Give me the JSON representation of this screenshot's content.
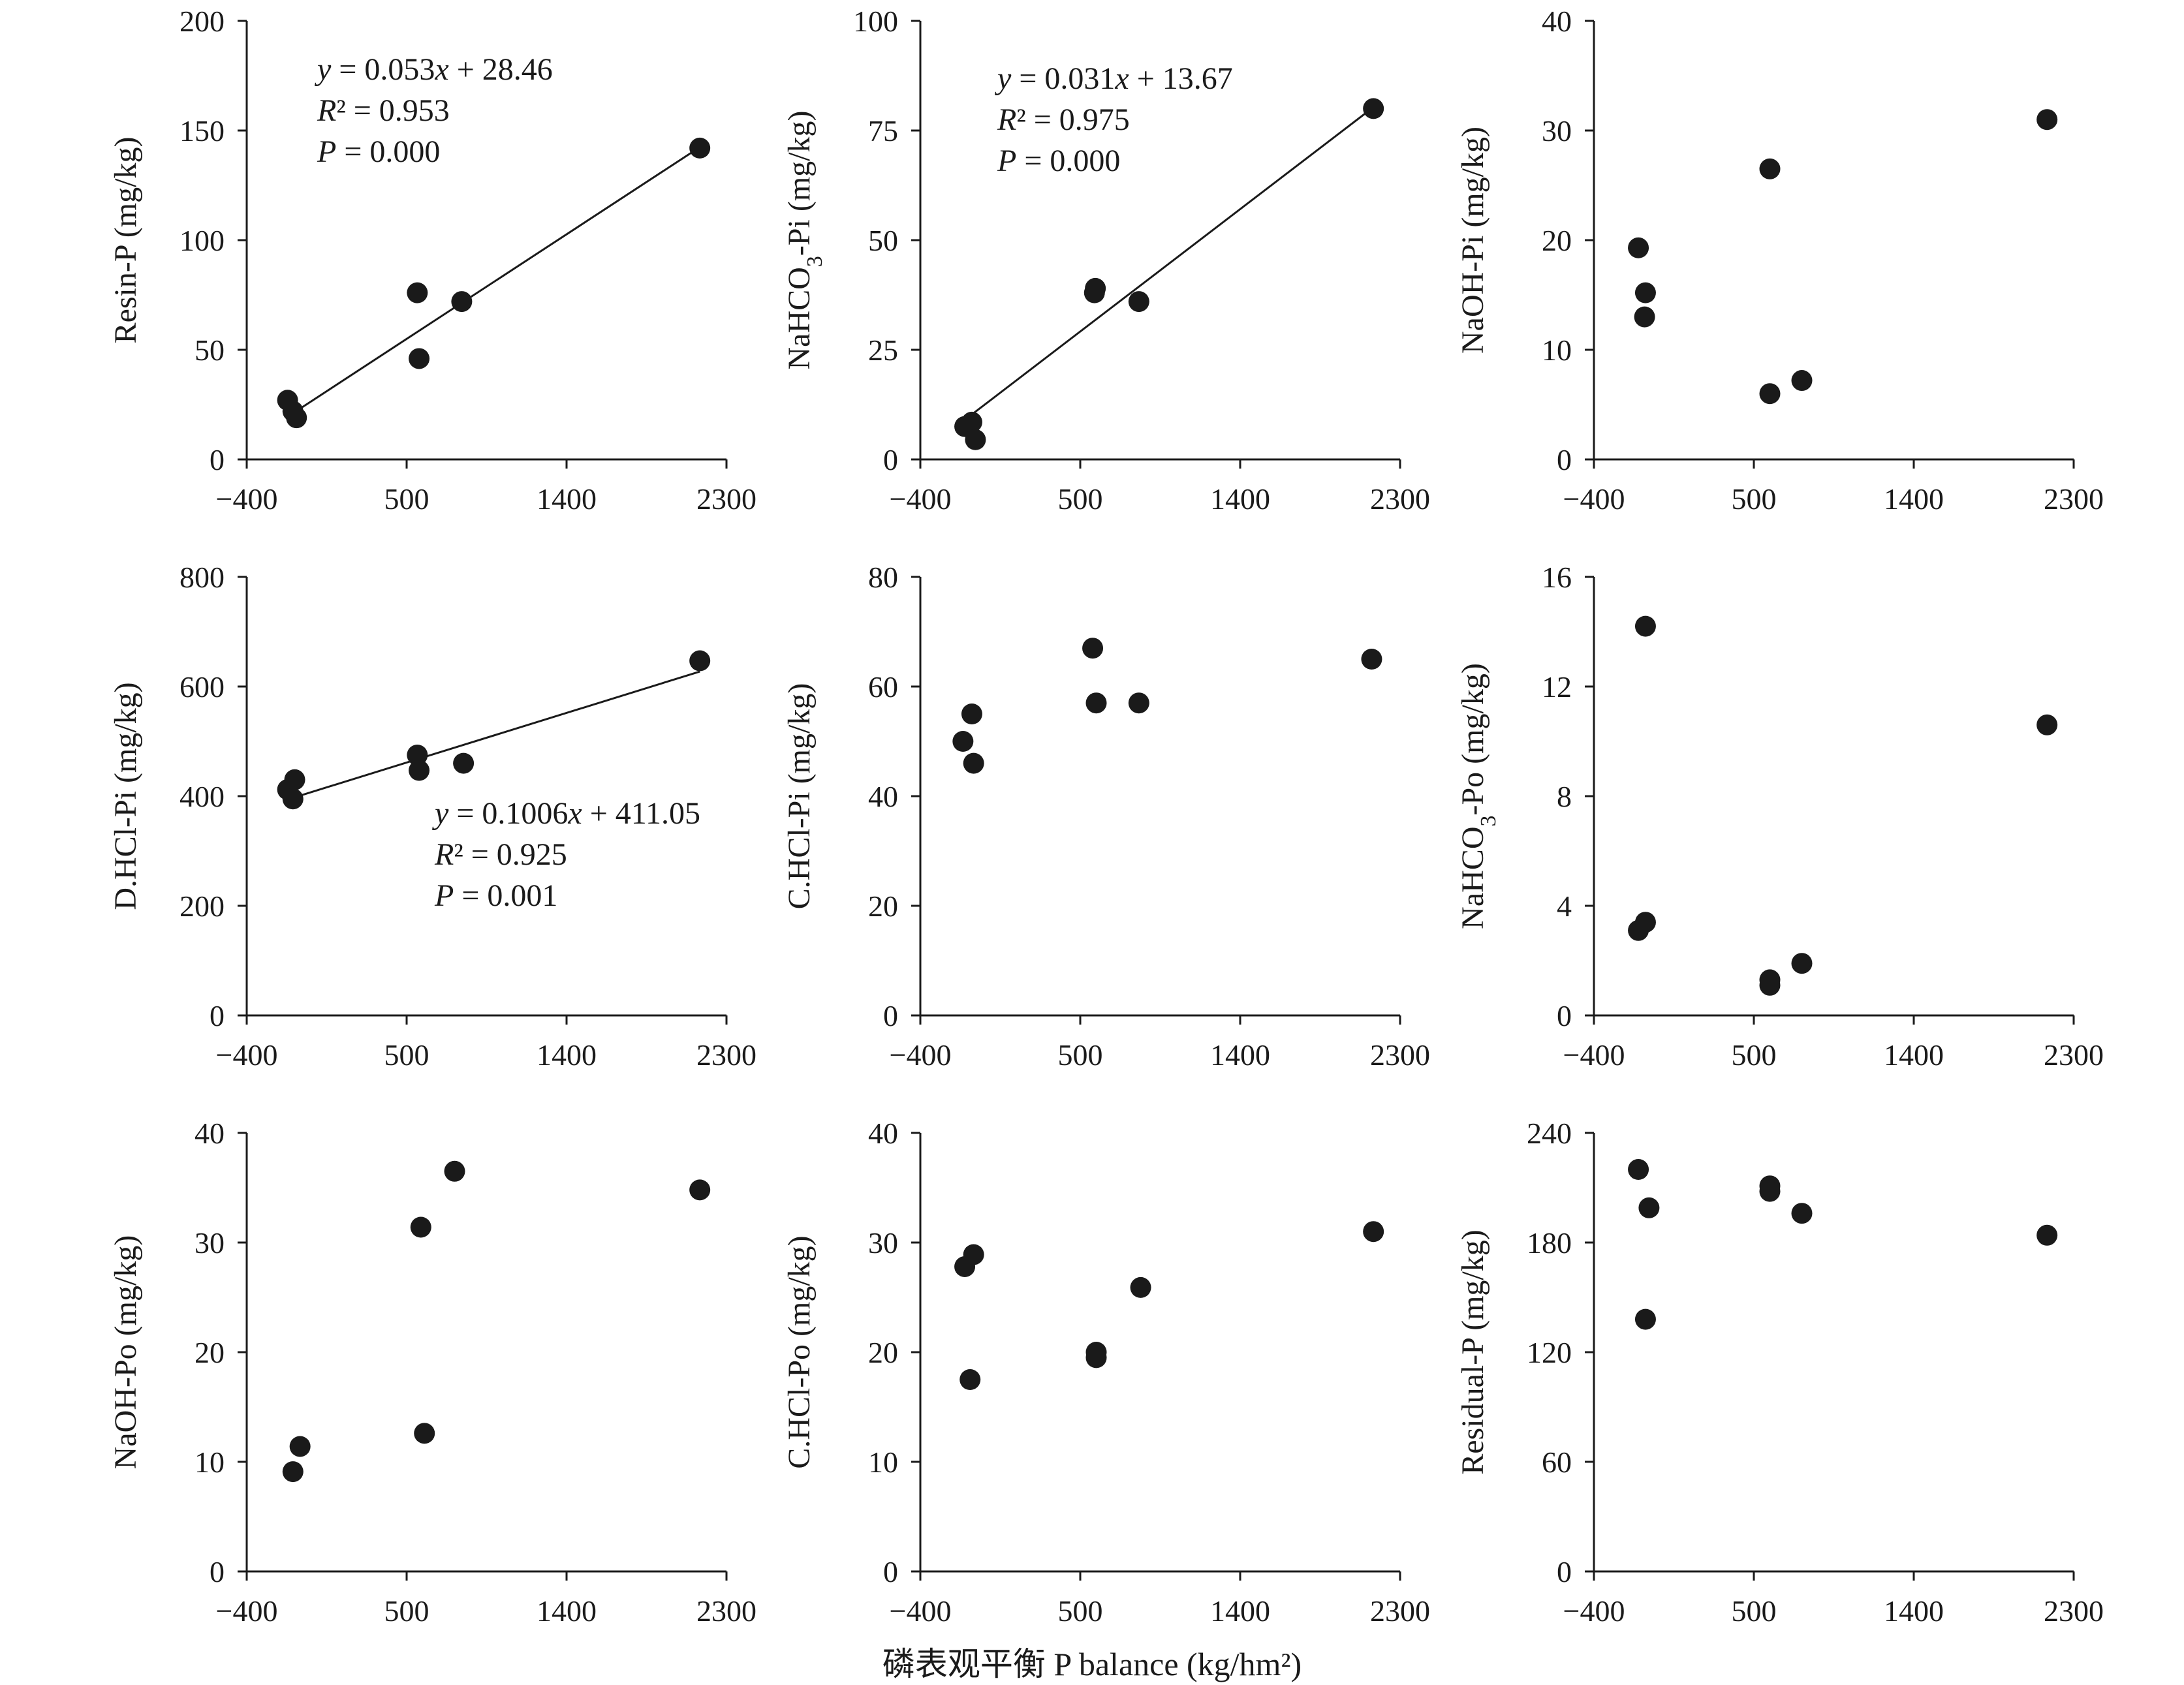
{
  "figure": {
    "x_axis_caption": "磷表观平衡 P balance (kg/hm²)"
  },
  "chart_data": [
    {
      "type": "scatter",
      "id": "resin-p",
      "ylabel": "Resin-P (mg/kg)",
      "xlim": [
        -400,
        2300
      ],
      "ylim": [
        0,
        200
      ],
      "xticks": [
        -400,
        500,
        1400,
        2300
      ],
      "yticks": [
        0,
        50,
        100,
        150,
        200
      ],
      "xtick_labels": [
        "−400",
        "500",
        "1400",
        "2300"
      ],
      "ytick_labels": [
        "0",
        "50",
        "100",
        "150",
        "200"
      ],
      "points": [
        [
          -170,
          27
        ],
        [
          -140,
          22
        ],
        [
          -120,
          19
        ],
        [
          560,
          76
        ],
        [
          570,
          46
        ],
        [
          810,
          72
        ],
        [
          2150,
          142
        ]
      ],
      "trendline": {
        "slope": 0.053,
        "intercept": 28.46,
        "x_range": [
          -150,
          2150
        ]
      },
      "annotation": [
        "y = 0.053x + 28.46",
        "R² = 0.953",
        "P = 0.000"
      ],
      "annotation_pos": "upper-left"
    },
    {
      "type": "scatter",
      "id": "nahco3-pi",
      "ylabel": "NaHCO3-Pi (mg/kg)",
      "xlim": [
        -400,
        2300
      ],
      "ylim": [
        0,
        100
      ],
      "xticks": [
        -400,
        500,
        1400,
        2300
      ],
      "yticks": [
        0,
        25,
        50,
        75,
        100
      ],
      "xtick_labels": [
        "−400",
        "500",
        "1400",
        "2300"
      ],
      "ytick_labels": [
        "0",
        "25",
        "50",
        "75",
        "100"
      ],
      "points": [
        [
          -150,
          7.5
        ],
        [
          -110,
          8.5
        ],
        [
          -90,
          4.5
        ],
        [
          580,
          38
        ],
        [
          585,
          39
        ],
        [
          830,
          36
        ],
        [
          2150,
          80
        ]
      ],
      "trendline": {
        "slope": 0.031,
        "intercept": 13.67,
        "x_range": [
          -150,
          2150
        ]
      },
      "annotation": [
        "y = 0.031x + 13.67",
        "R² = 0.975",
        "P = 0.000"
      ],
      "annotation_pos": "upper-left"
    },
    {
      "type": "scatter",
      "id": "naoh-pi",
      "ylabel": "NaOH-Pi (mg/kg)",
      "xlim": [
        -400,
        2300
      ],
      "ylim": [
        0,
        40
      ],
      "xticks": [
        -400,
        500,
        1400,
        2300
      ],
      "yticks": [
        0,
        10,
        20,
        30,
        40
      ],
      "xtick_labels": [
        "−400",
        "500",
        "1400",
        "2300"
      ],
      "ytick_labels": [
        "0",
        "10",
        "20",
        "30",
        "40"
      ],
      "points": [
        [
          -150,
          19.3
        ],
        [
          -110,
          15.2
        ],
        [
          -115,
          13
        ],
        [
          590,
          26.5
        ],
        [
          590,
          6
        ],
        [
          770,
          7.2
        ],
        [
          2150,
          31
        ]
      ]
    },
    {
      "type": "scatter",
      "id": "dhcl-pi",
      "ylabel": "D.HCl-Pi (mg/kg)",
      "xlim": [
        -400,
        2300
      ],
      "ylim": [
        0,
        800
      ],
      "xticks": [
        -400,
        500,
        1400,
        2300
      ],
      "yticks": [
        0,
        200,
        400,
        600,
        800
      ],
      "xtick_labels": [
        "−400",
        "500",
        "1400",
        "2300"
      ],
      "ytick_labels": [
        "0",
        "200",
        "400",
        "600",
        "800"
      ],
      "points": [
        [
          -170,
          412
        ],
        [
          -130,
          430
        ],
        [
          -140,
          395
        ],
        [
          560,
          475
        ],
        [
          570,
          447
        ],
        [
          820,
          460
        ],
        [
          2150,
          647
        ]
      ],
      "trendline": {
        "slope": 0.1006,
        "intercept": 411.05,
        "x_range": [
          -150,
          2150
        ]
      },
      "annotation": [
        "y = 0.1006x + 411.05",
        "R² = 0.925",
        "P = 0.001"
      ],
      "annotation_pos": "lower-right"
    },
    {
      "type": "scatter",
      "id": "chcl-pi",
      "ylabel": "C.HCl-Pi (mg/kg)",
      "xlim": [
        -400,
        2300
      ],
      "ylim": [
        0,
        80
      ],
      "xticks": [
        -400,
        500,
        1400,
        2300
      ],
      "yticks": [
        0,
        20,
        40,
        60,
        80
      ],
      "xtick_labels": [
        "−400",
        "500",
        "1400",
        "2300"
      ],
      "ytick_labels": [
        "0",
        "20",
        "40",
        "60",
        "80"
      ],
      "points": [
        [
          -160,
          50
        ],
        [
          -110,
          55
        ],
        [
          -100,
          46
        ],
        [
          570,
          67
        ],
        [
          590,
          57
        ],
        [
          830,
          57
        ],
        [
          2140,
          65
        ]
      ]
    },
    {
      "type": "scatter",
      "id": "nahco3-po",
      "ylabel": "NaHCO3-Po (mg/kg)",
      "xlim": [
        -400,
        2300
      ],
      "ylim": [
        0,
        16
      ],
      "xticks": [
        -400,
        500,
        1400,
        2300
      ],
      "yticks": [
        0,
        4,
        8,
        12,
        16
      ],
      "xtick_labels": [
        "−400",
        "500",
        "1400",
        "2300"
      ],
      "ytick_labels": [
        "0",
        "4",
        "8",
        "12",
        "16"
      ],
      "points": [
        [
          -110,
          14.2
        ],
        [
          -150,
          3.1
        ],
        [
          -110,
          3.4
        ],
        [
          590,
          1.3
        ],
        [
          590,
          1.1
        ],
        [
          770,
          1.9
        ],
        [
          2150,
          10.6
        ]
      ]
    },
    {
      "type": "scatter",
      "id": "naoh-po",
      "ylabel": "NaOH-Po (mg/kg)",
      "xlim": [
        -400,
        2300
      ],
      "ylim": [
        0,
        40
      ],
      "xticks": [
        -400,
        500,
        1400,
        2300
      ],
      "yticks": [
        0,
        10,
        20,
        30,
        40
      ],
      "xtick_labels": [
        "−400",
        "500",
        "1400",
        "2300"
      ],
      "ytick_labels": [
        "0",
        "10",
        "20",
        "30",
        "40"
      ],
      "points": [
        [
          -140,
          9.1
        ],
        [
          -100,
          11.4
        ],
        [
          580,
          31.4
        ],
        [
          600,
          12.6
        ],
        [
          770,
          36.5
        ],
        [
          2150,
          34.8
        ]
      ]
    },
    {
      "type": "scatter",
      "id": "chcl-po",
      "ylabel": "C.HCl-Po (mg/kg)",
      "xlim": [
        -400,
        2300
      ],
      "ylim": [
        0,
        40
      ],
      "xticks": [
        -400,
        500,
        1400,
        2300
      ],
      "yticks": [
        0,
        10,
        20,
        30,
        40
      ],
      "xtick_labels": [
        "−400",
        "500",
        "1400",
        "2300"
      ],
      "ytick_labels": [
        "0",
        "10",
        "20",
        "30",
        "40"
      ],
      "points": [
        [
          -150,
          27.8
        ],
        [
          -100,
          28.9
        ],
        [
          -120,
          17.5
        ],
        [
          590,
          20
        ],
        [
          590,
          19.5
        ],
        [
          840,
          25.9
        ],
        [
          2150,
          31
        ]
      ]
    },
    {
      "type": "scatter",
      "id": "residual-p",
      "ylabel": "Residual-P (mg/kg)",
      "xlim": [
        -400,
        2300
      ],
      "ylim": [
        0,
        240
      ],
      "xticks": [
        -400,
        500,
        1400,
        2300
      ],
      "yticks": [
        0,
        60,
        120,
        180,
        240
      ],
      "xtick_labels": [
        "−400",
        "500",
        "1400",
        "2300"
      ],
      "ytick_labels": [
        "0",
        "60",
        "120",
        "180",
        "240"
      ],
      "points": [
        [
          -150,
          220
        ],
        [
          -90,
          199
        ],
        [
          -110,
          138
        ],
        [
          590,
          211
        ],
        [
          590,
          208
        ],
        [
          770,
          196
        ],
        [
          2150,
          184
        ]
      ]
    }
  ]
}
